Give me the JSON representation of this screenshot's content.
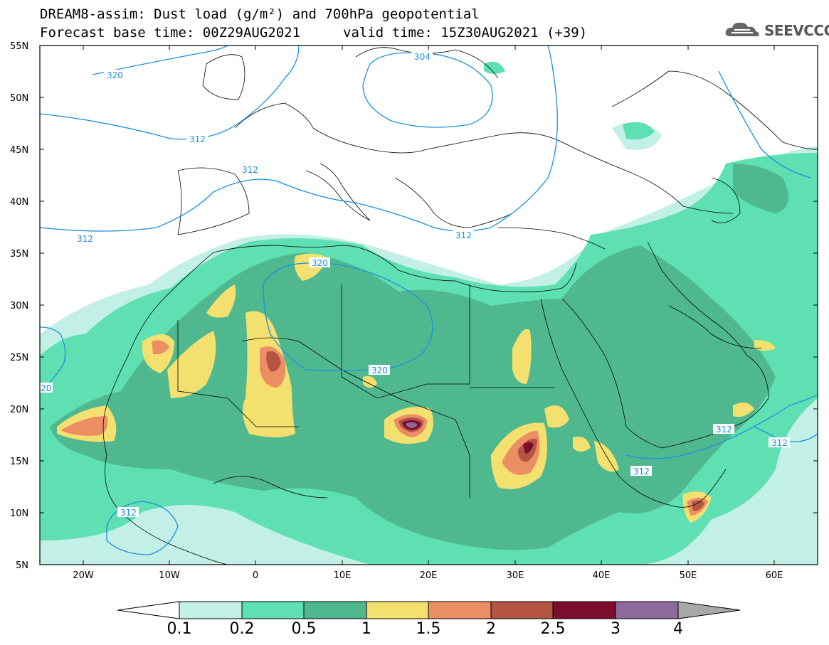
{
  "title_line1": "DREAM8-assim: Dust load (g/m²) and 700hPa geopotential",
  "title_line2_left": "Forecast base time: 00Z29AUG2021",
  "title_line2_right": "valid time: 15Z30AUG2021 (+39)",
  "logo_text": "SEEVCCC",
  "colors": {
    "c0.1": "#c2efe6",
    "c0.2": "#5ee0b3",
    "c0.5": "#50b88f",
    "c1": "#f4e06f",
    "c1.5": "#eb8e64",
    "c2": "#b45543",
    "c2.5": "#7d0d2c",
    "c3": "#8b6a9c",
    "c4": "#a8a8a8",
    "contour": "#1a8fe0"
  },
  "map": {
    "lon_range": [
      -25,
      65
    ],
    "lat_range": [
      5,
      55
    ],
    "lat_ticks": [
      "55N",
      "50N",
      "45N",
      "40N",
      "35N",
      "30N",
      "25N",
      "20N",
      "15N",
      "10N",
      "5N"
    ],
    "lon_ticks": [
      "20W",
      "10W",
      "0",
      "10E",
      "20E",
      "30E",
      "40E",
      "50E",
      "60E"
    ],
    "contour_labels": [
      "320",
      "304",
      "312",
      "312",
      "312",
      "312",
      "320",
      "320",
      "20",
      "312",
      "312",
      "312",
      "312"
    ]
  },
  "colorbar": {
    "labels": [
      "0.1",
      "0.2",
      "0.5",
      "1",
      "1.5",
      "2",
      "2.5",
      "3",
      "4"
    ]
  }
}
